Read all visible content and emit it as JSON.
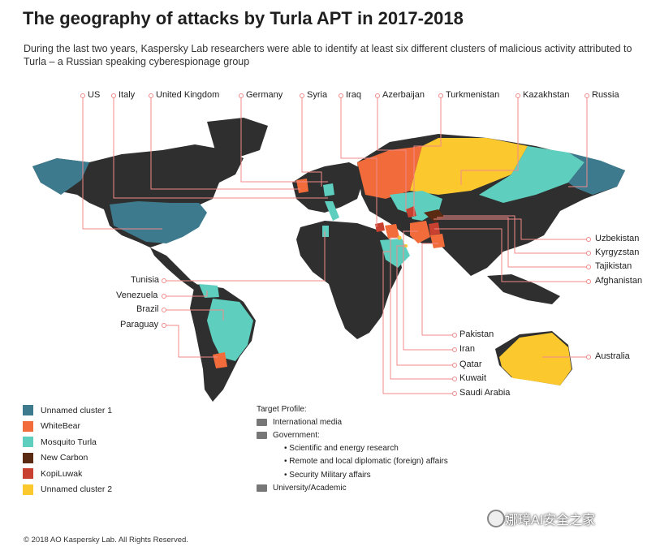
{
  "header": {
    "title": "The geography of attacks by Turla APT in 2017-2018",
    "subtitle": "During the last two years, Kaspersky Lab researchers were able to identify at least six different clusters of malicious activity attributed to Turla – a Russian speaking cyberespionage group"
  },
  "countries_top": [
    "US",
    "Italy",
    "United Kingdom",
    "Germany",
    "Syria",
    "Iraq",
    "Azerbaijan",
    "Turkmenistan",
    "Kazakhstan",
    "Russia"
  ],
  "countries_right": [
    "Uzbekistan",
    "Kyrgyzstan",
    "Tajikistan",
    "Afghanistan"
  ],
  "countries_left": [
    "Tunisia",
    "Venezuela",
    "Brazil",
    "Paraguay"
  ],
  "countries_bottom": [
    "Pakistan",
    "Iran",
    "Qatar",
    "Kuwait",
    "Saudi Arabia"
  ],
  "australia": "Australia",
  "legend": [
    {
      "label": "Unnamed cluster 1",
      "color": "#3d7a8d"
    },
    {
      "label": "WhiteBear",
      "color": "#f26b3a"
    },
    {
      "label": "Mosquito Turla",
      "color": "#5ecfbe"
    },
    {
      "label": "New Carbon",
      "color": "#5a2a12"
    },
    {
      "label": "KopiLuwak",
      "color": "#c8402f"
    },
    {
      "label": "Unnamed cluster 2",
      "color": "#fbc82e"
    }
  ],
  "target_profile": {
    "heading": "Target Profile:",
    "media": "International media",
    "government": "Government:",
    "gov_items": [
      "Scientific and energy research",
      "Remote and local diplomatic (foreign) affairs",
      "Security Military affairs"
    ],
    "academic": "University/Academic"
  },
  "colors": {
    "base": "#2f2f2f",
    "line": "#f08a8a"
  },
  "copyright": "© 2018 AO Kaspersky Lab. All Rights Reserved.",
  "watermark": "娜璋AI安全之家"
}
